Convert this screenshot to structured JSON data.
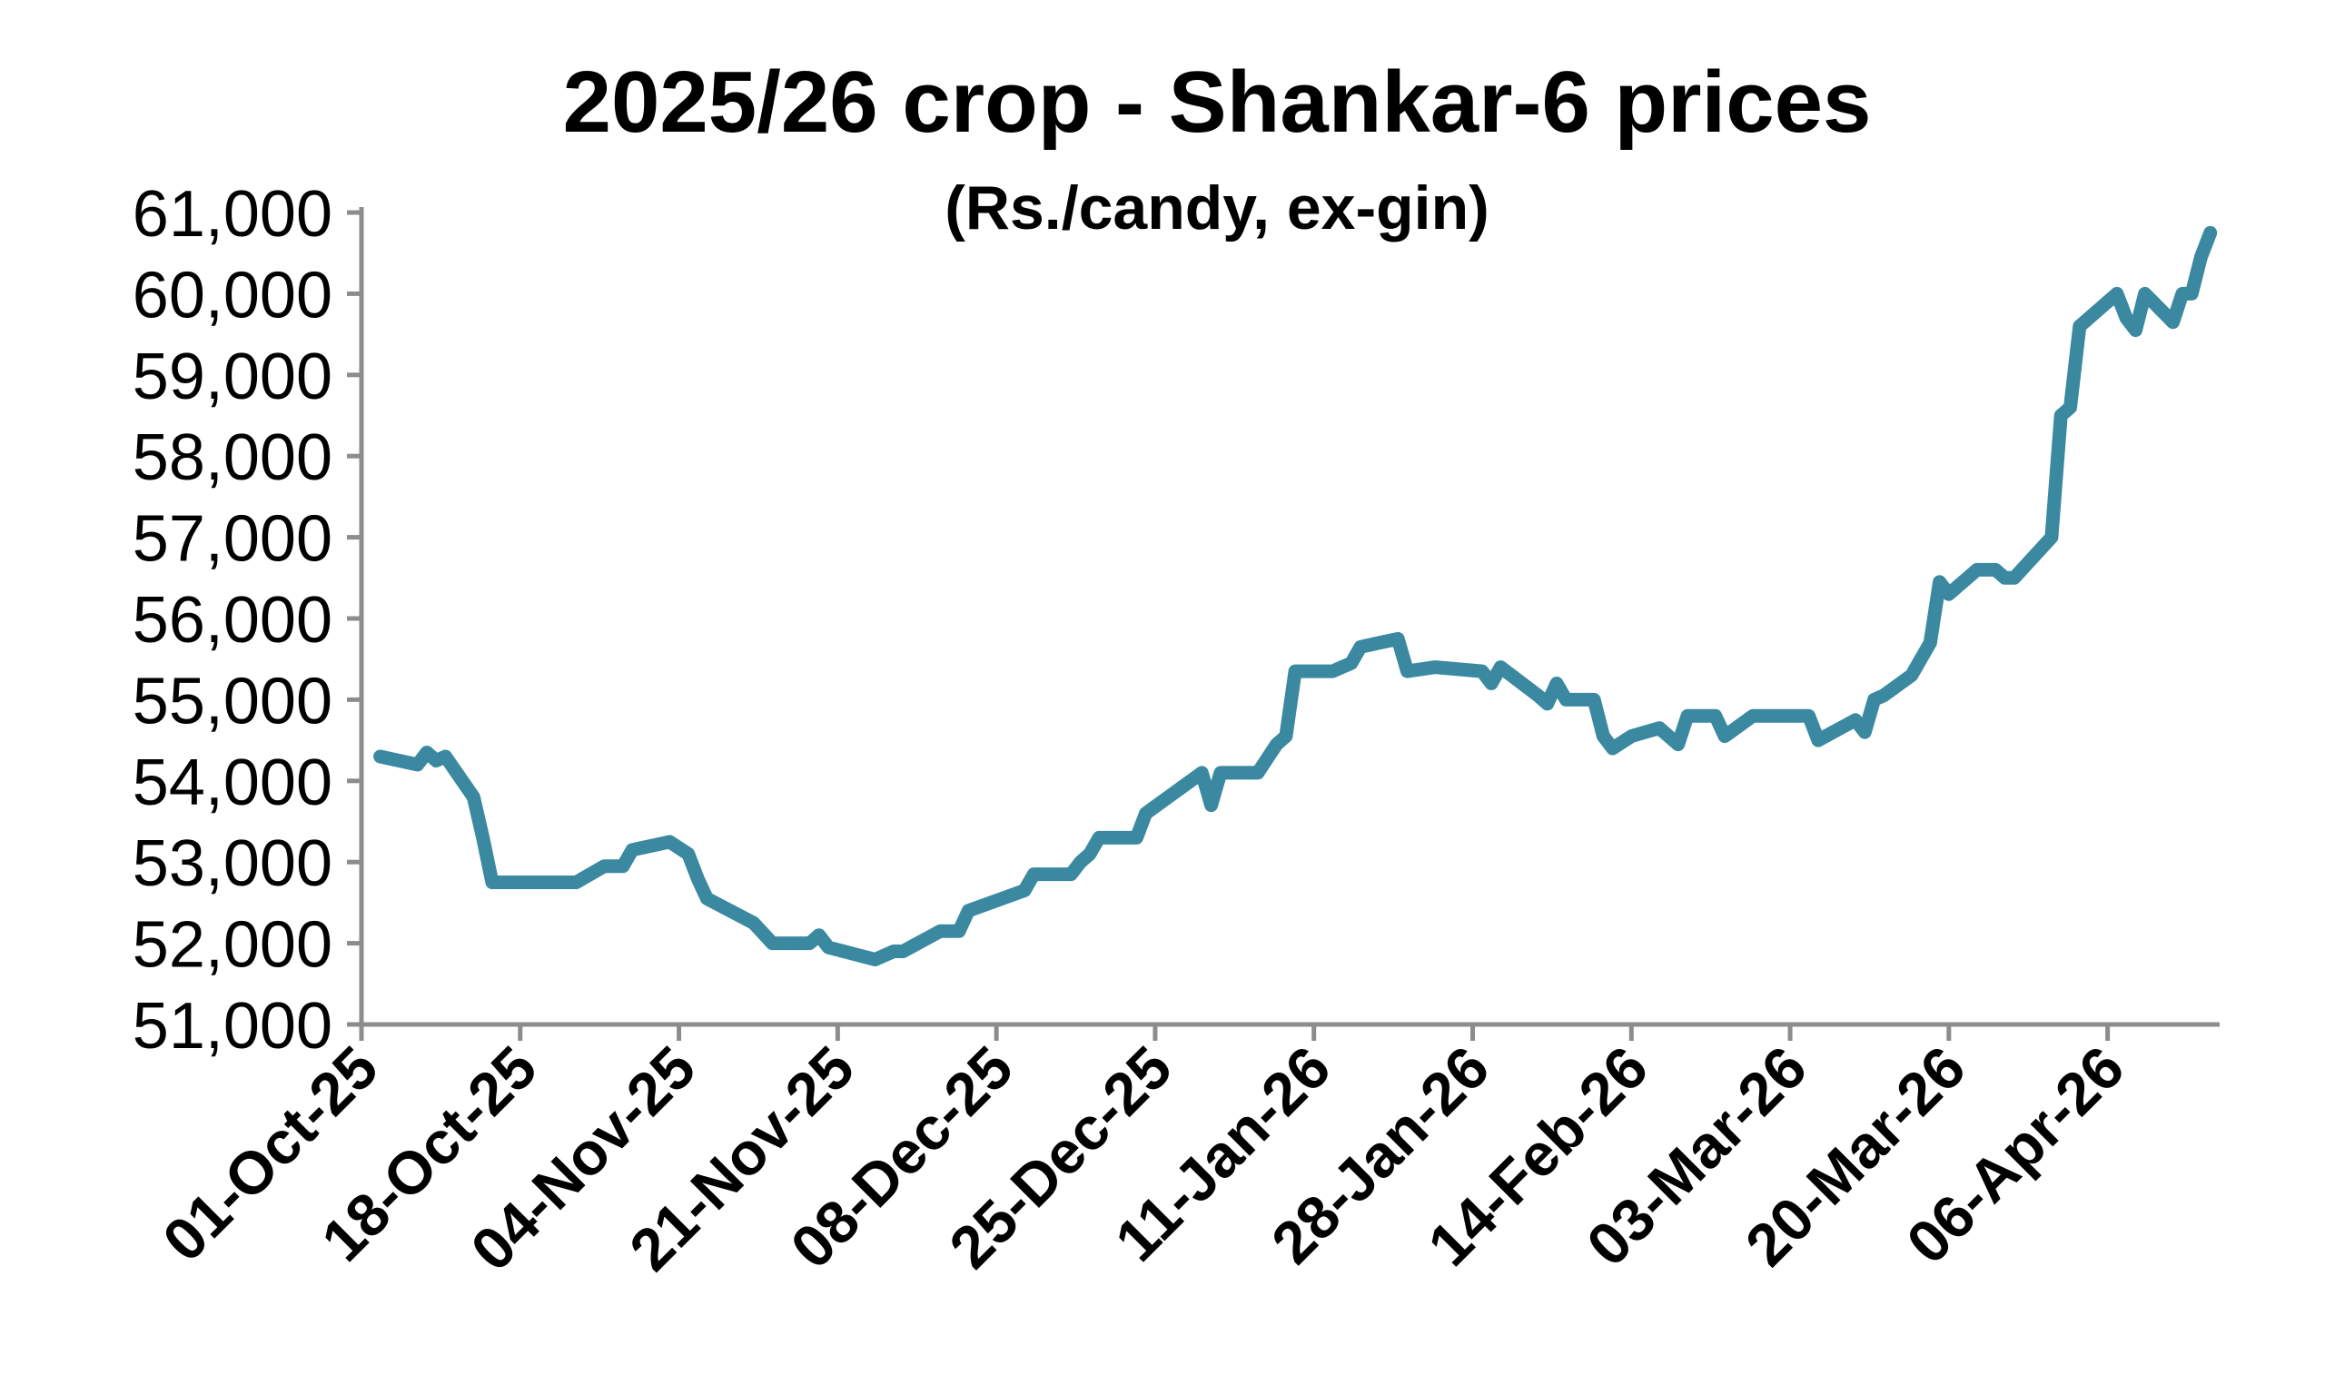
{
  "chart_data": {
    "type": "line",
    "title": "2025/26 crop - Shankar-6 prices",
    "subtitle": "(Rs./candy, ex-gin)",
    "x": [
      "2025-10-03",
      "2025-10-07",
      "2025-10-08",
      "2025-10-09",
      "2025-10-10",
      "2025-10-13",
      "2025-10-14",
      "2025-10-15",
      "2025-10-24",
      "2025-10-27",
      "2025-10-29",
      "2025-10-30",
      "2025-11-03",
      "2025-11-05",
      "2025-11-06",
      "2025-11-07",
      "2025-11-12",
      "2025-11-14",
      "2025-11-18",
      "2025-11-19",
      "2025-11-20",
      "2025-11-25",
      "2025-11-27",
      "2025-11-28",
      "2025-12-02",
      "2025-12-04",
      "2025-12-05",
      "2025-12-11",
      "2025-12-12",
      "2025-12-16",
      "2025-12-17",
      "2025-12-18",
      "2025-12-19",
      "2025-12-23",
      "2025-12-24",
      "2025-12-30",
      "2025-12-31",
      "2026-01-01",
      "2026-01-05",
      "2026-01-07",
      "2026-01-08",
      "2026-01-09",
      "2026-01-13",
      "2026-01-14",
      "2026-01-15",
      "2026-01-16",
      "2026-01-20",
      "2026-01-21",
      "2026-01-24",
      "2026-01-29",
      "2026-01-30",
      "2026-01-31",
      "2026-02-04",
      "2026-02-05",
      "2026-02-06",
      "2026-02-07",
      "2026-02-10",
      "2026-02-11",
      "2026-02-12",
      "2026-02-14",
      "2026-02-17",
      "2026-02-19",
      "2026-02-20",
      "2026-02-23",
      "2026-02-24",
      "2026-02-27",
      "2026-03-05",
      "2026-03-06",
      "2026-03-10",
      "2026-03-11",
      "2026-03-12",
      "2026-03-13",
      "2026-03-16",
      "2026-03-18",
      "2026-03-19",
      "2026-03-20",
      "2026-03-23",
      "2026-03-25",
      "2026-03-26",
      "2026-03-27",
      "2026-03-31",
      "2026-04-01",
      "2026-04-02",
      "2026-04-03",
      "2026-04-07",
      "2026-04-08",
      "2026-04-09",
      "2026-04-10",
      "2026-04-13",
      "2026-04-14",
      "2026-04-15",
      "2026-04-16",
      "2026-04-17"
    ],
    "series": [
      {
        "name": "Shankar-6",
        "color": "#3a89a0",
        "values": [
          54300,
          54200,
          54350,
          54250,
          54300,
          53800,
          53300,
          52750,
          52750,
          52950,
          52950,
          53150,
          53250,
          53100,
          52800,
          52550,
          52250,
          52000,
          52000,
          52100,
          51950,
          51800,
          51900,
          51900,
          52150,
          52150,
          52400,
          52650,
          52850,
          52850,
          53000,
          53100,
          53300,
          53300,
          53600,
          54100,
          53700,
          54100,
          54100,
          54450,
          54550,
          55350,
          55350,
          55400,
          55450,
          55650,
          55750,
          55350,
          55400,
          55350,
          55200,
          55400,
          55050,
          54950,
          55200,
          55000,
          55000,
          54550,
          54400,
          54550,
          54650,
          54450,
          54800,
          54800,
          54550,
          54800,
          54800,
          54500,
          54750,
          54600,
          55000,
          55050,
          55300,
          55700,
          56450,
          56300,
          56600,
          56600,
          56500,
          56500,
          57000,
          58500,
          58600,
          59600,
          60000,
          59700,
          59550,
          60000,
          59650,
          60000,
          60000,
          60450,
          60750
        ]
      }
    ],
    "xlim": [
      "2025-10-01",
      "2026-04-18"
    ],
    "xticks": [
      {
        "value": "2025-10-01",
        "label": "01-Oct-25"
      },
      {
        "value": "2025-10-18",
        "label": "18-Oct-25"
      },
      {
        "value": "2025-11-04",
        "label": "04-Nov-25"
      },
      {
        "value": "2025-11-21",
        "label": "21-Nov-25"
      },
      {
        "value": "2025-12-08",
        "label": "08-Dec-25"
      },
      {
        "value": "2025-12-25",
        "label": "25-Dec-25"
      },
      {
        "value": "2026-01-11",
        "label": "11-Jan-26"
      },
      {
        "value": "2026-01-28",
        "label": "28-Jan-26"
      },
      {
        "value": "2026-02-14",
        "label": "14-Feb-26"
      },
      {
        "value": "2026-03-03",
        "label": "03-Mar-26"
      },
      {
        "value": "2026-03-20",
        "label": "20-Mar-26"
      },
      {
        "value": "2026-04-06",
        "label": "06-Apr-26"
      }
    ],
    "ylim": [
      51000,
      61000
    ],
    "yticks": [
      {
        "value": 51000,
        "label": "51,000"
      },
      {
        "value": 52000,
        "label": "52,000"
      },
      {
        "value": 53000,
        "label": "53,000"
      },
      {
        "value": 54000,
        "label": "54,000"
      },
      {
        "value": 55000,
        "label": "55,000"
      },
      {
        "value": 56000,
        "label": "56,000"
      },
      {
        "value": 57000,
        "label": "57,000"
      },
      {
        "value": 58000,
        "label": "58,000"
      },
      {
        "value": 59000,
        "label": "59,000"
      },
      {
        "value": 60000,
        "label": "60,000"
      },
      {
        "value": 61000,
        "label": "61,000"
      }
    ],
    "grid": false
  }
}
